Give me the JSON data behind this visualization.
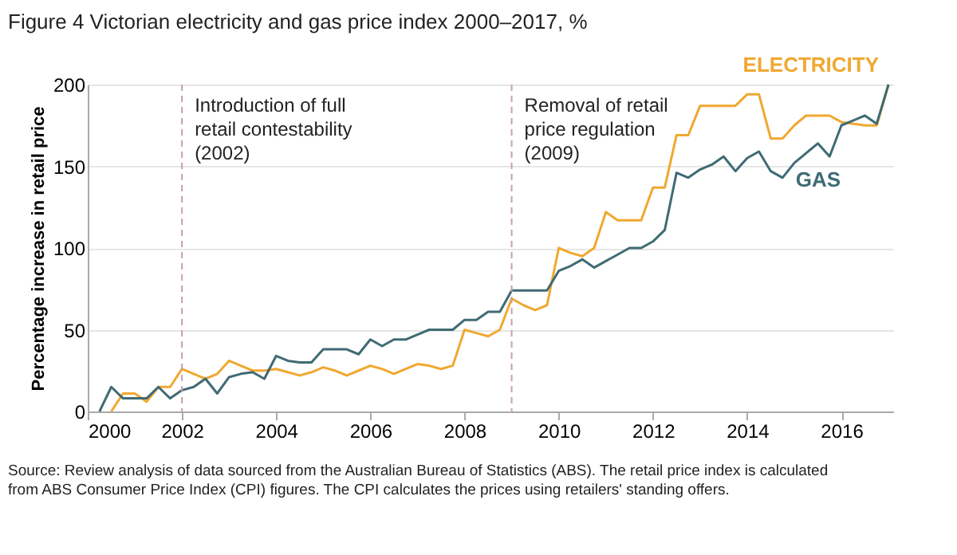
{
  "chart_data": {
    "type": "line",
    "title": "Figure 4 Victorian electricity and gas price index 2000–2017, %",
    "ylabel": "Percentage increase in retail price",
    "xlim": [
      2000,
      2017.1
    ],
    "xticks": [
      2000,
      2002,
      2004,
      2006,
      2008,
      2010,
      2012,
      2014,
      2016
    ],
    "ylim": [
      0,
      200
    ],
    "yticks": [
      0,
      50,
      100,
      150,
      200
    ],
    "grid": "y",
    "legend": false,
    "marker": "none",
    "line_style": "solid",
    "series": [
      {
        "name": "ELECTRICITY",
        "color": "#f0a830",
        "x": [
          2000.5,
          2000.75,
          2001,
          2001.25,
          2001.5,
          2001.75,
          2002,
          2002.25,
          2002.5,
          2002.75,
          2003,
          2003.25,
          2003.5,
          2003.75,
          2004,
          2004.25,
          2004.5,
          2004.75,
          2005,
          2005.25,
          2005.5,
          2005.75,
          2006,
          2006.25,
          2006.5,
          2006.75,
          2007,
          2007.25,
          2007.5,
          2007.75,
          2008,
          2008.25,
          2008.5,
          2008.75,
          2009,
          2009.25,
          2009.5,
          2009.75,
          2010,
          2010.25,
          2010.5,
          2010.75,
          2011,
          2011.25,
          2011.5,
          2011.75,
          2012,
          2012.25,
          2012.5,
          2012.75,
          2013,
          2013.25,
          2013.5,
          2013.75,
          2014,
          2014.25,
          2014.5,
          2014.75,
          2015,
          2015.25,
          2015.5,
          2015.75,
          2016,
          2016.25,
          2016.5,
          2016.75,
          2017
        ],
        "values": [
          0,
          11,
          11,
          6,
          15,
          15,
          26,
          23,
          20,
          23,
          31,
          28,
          25,
          25,
          26,
          24,
          22,
          24,
          27,
          25,
          22,
          25,
          28,
          26,
          23,
          26,
          29,
          28,
          26,
          28,
          50,
          48,
          46,
          50,
          69,
          65,
          62,
          65,
          100,
          97,
          95,
          100,
          122,
          117,
          117,
          117,
          137,
          137,
          169,
          169,
          187,
          187,
          187,
          187,
          194,
          194,
          167,
          167,
          175,
          181,
          181,
          181,
          177,
          176,
          175,
          175,
          200
        ]
      },
      {
        "name": "GAS",
        "color": "#3f6b74",
        "x": [
          2000.25,
          2000.5,
          2000.75,
          2001,
          2001.25,
          2001.5,
          2001.75,
          2002,
          2002.25,
          2002.5,
          2002.75,
          2003,
          2003.25,
          2003.5,
          2003.75,
          2004,
          2004.25,
          2004.5,
          2004.75,
          2005,
          2005.25,
          2005.5,
          2005.75,
          2006,
          2006.25,
          2006.5,
          2006.75,
          2007,
          2007.25,
          2007.5,
          2007.75,
          2008,
          2008.25,
          2008.5,
          2008.75,
          2009,
          2009.25,
          2009.5,
          2009.75,
          2010,
          2010.25,
          2010.5,
          2010.75,
          2011,
          2011.25,
          2011.5,
          2011.75,
          2012,
          2012.25,
          2012.5,
          2012.75,
          2013,
          2013.25,
          2013.5,
          2013.75,
          2014,
          2014.25,
          2014.5,
          2014.75,
          2015,
          2015.25,
          2015.5,
          2015.75,
          2016,
          2016.25,
          2016.5,
          2016.75,
          2017
        ],
        "values": [
          0,
          15,
          8,
          8,
          8,
          15,
          8,
          13,
          15,
          20,
          11,
          21,
          23,
          24,
          20,
          34,
          31,
          30,
          30,
          38,
          38,
          38,
          35,
          44,
          40,
          44,
          44,
          47,
          50,
          50,
          50,
          56,
          56,
          61,
          61,
          74,
          74,
          74,
          74,
          86,
          89,
          93,
          88,
          92,
          96,
          100,
          100,
          104,
          111,
          146,
          143,
          148,
          151,
          156,
          147,
          155,
          159,
          147,
          143,
          152,
          158,
          164,
          156,
          175,
          178,
          181,
          176,
          200
        ]
      }
    ],
    "ref_lines": [
      {
        "axis": "x",
        "value": 2002,
        "label": "Introduction of full\nretail contestability\n(2002)",
        "color": "#c9a0a6",
        "line_style": "dashed"
      },
      {
        "axis": "x",
        "value": 2009,
        "label": "Removal of retail\nprice regulation\n(2009)",
        "color": "#c9a0a6",
        "line_style": "dashed"
      }
    ],
    "annotations": [
      "Source: Review analysis of data sourced from the Australian Bureau of Statistics (ABS). The retail price index is calculated from ABS Consumer Price Index (CPI) figures. The CPI calculates the prices using retailers' standing offers."
    ]
  }
}
